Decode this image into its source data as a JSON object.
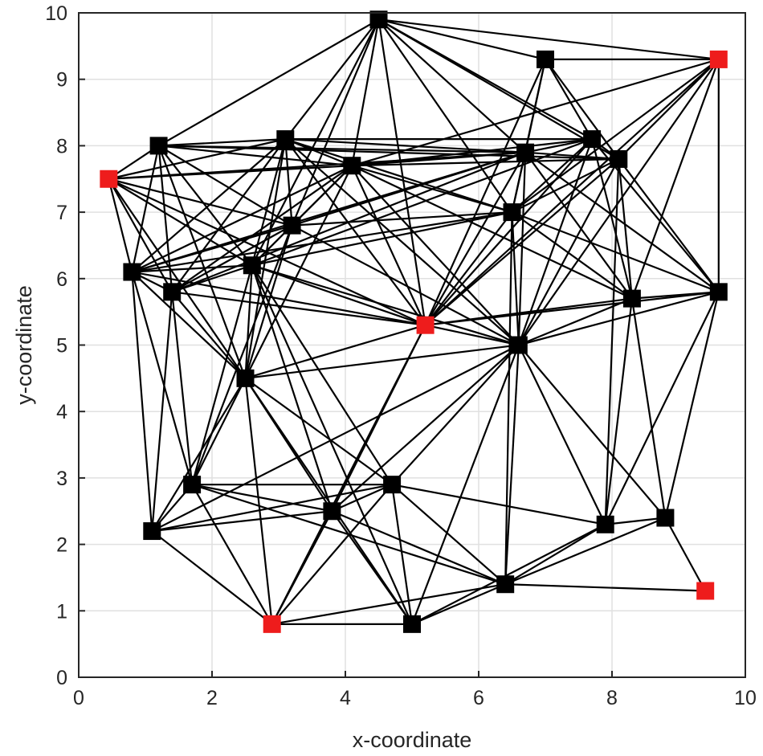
{
  "chart_data": {
    "type": "scatter",
    "title": "",
    "xlabel": "x-coordinate",
    "ylabel": "y-coordinate",
    "xlim": [
      0,
      10
    ],
    "ylim": [
      0,
      10
    ],
    "xticks": [
      "0",
      "2",
      "4",
      "6",
      "8",
      "10"
    ],
    "yticks": [
      "0",
      "1",
      "2",
      "3",
      "4",
      "5",
      "6",
      "7",
      "8",
      "9",
      "10"
    ],
    "grid": true,
    "colors": {
      "node": "#000000",
      "anchor": "#ee1c1c",
      "edge": "#000000",
      "grid": "#e0e0e0"
    },
    "nodes": [
      {
        "id": "N0",
        "x": 4.5,
        "y": 9.9,
        "anchor": false
      },
      {
        "id": "N1",
        "x": 7.0,
        "y": 9.3,
        "anchor": false
      },
      {
        "id": "N2",
        "x": 9.6,
        "y": 9.3,
        "anchor": true
      },
      {
        "id": "N3",
        "x": 1.2,
        "y": 8.0,
        "anchor": false
      },
      {
        "id": "N4",
        "x": 3.1,
        "y": 8.1,
        "anchor": false
      },
      {
        "id": "N5",
        "x": 0.45,
        "y": 7.5,
        "anchor": true
      },
      {
        "id": "N6",
        "x": 4.1,
        "y": 7.7,
        "anchor": false
      },
      {
        "id": "N7",
        "x": 6.7,
        "y": 7.9,
        "anchor": false
      },
      {
        "id": "N8",
        "x": 7.7,
        "y": 8.1,
        "anchor": false
      },
      {
        "id": "N9",
        "x": 8.1,
        "y": 7.8,
        "anchor": false
      },
      {
        "id": "N10",
        "x": 6.5,
        "y": 7.0,
        "anchor": false
      },
      {
        "id": "N11",
        "x": 3.2,
        "y": 6.8,
        "anchor": false
      },
      {
        "id": "N12",
        "x": 0.8,
        "y": 6.1,
        "anchor": false
      },
      {
        "id": "N13",
        "x": 2.6,
        "y": 6.2,
        "anchor": false
      },
      {
        "id": "N14",
        "x": 1.4,
        "y": 5.8,
        "anchor": false
      },
      {
        "id": "N15",
        "x": 8.3,
        "y": 5.7,
        "anchor": false
      },
      {
        "id": "N16",
        "x": 9.6,
        "y": 5.8,
        "anchor": false
      },
      {
        "id": "N17",
        "x": 5.2,
        "y": 5.3,
        "anchor": true
      },
      {
        "id": "N18",
        "x": 6.6,
        "y": 5.0,
        "anchor": false
      },
      {
        "id": "N19",
        "x": 2.5,
        "y": 4.5,
        "anchor": false
      },
      {
        "id": "N20",
        "x": 1.7,
        "y": 2.9,
        "anchor": false
      },
      {
        "id": "N21",
        "x": 4.7,
        "y": 2.9,
        "anchor": false
      },
      {
        "id": "N22",
        "x": 3.8,
        "y": 2.5,
        "anchor": false
      },
      {
        "id": "N23",
        "x": 1.1,
        "y": 2.2,
        "anchor": false
      },
      {
        "id": "N24",
        "x": 7.9,
        "y": 2.3,
        "anchor": false
      },
      {
        "id": "N25",
        "x": 8.8,
        "y": 2.4,
        "anchor": false
      },
      {
        "id": "N26",
        "x": 6.4,
        "y": 1.4,
        "anchor": false
      },
      {
        "id": "N27",
        "x": 9.4,
        "y": 1.3,
        "anchor": true
      },
      {
        "id": "N28",
        "x": 2.9,
        "y": 0.8,
        "anchor": true
      },
      {
        "id": "N29",
        "x": 5.0,
        "y": 0.8,
        "anchor": false
      }
    ],
    "edges": [
      [
        0,
        1
      ],
      [
        0,
        3
      ],
      [
        0,
        4
      ],
      [
        0,
        6
      ],
      [
        0,
        7
      ],
      [
        0,
        8
      ],
      [
        0,
        9
      ],
      [
        0,
        10
      ],
      [
        0,
        11
      ],
      [
        0,
        13
      ],
      [
        0,
        17
      ],
      [
        0,
        2
      ],
      [
        1,
        2
      ],
      [
        1,
        7
      ],
      [
        1,
        8
      ],
      [
        1,
        9
      ],
      [
        1,
        10
      ],
      [
        1,
        17
      ],
      [
        2,
        16
      ],
      [
        2,
        9
      ],
      [
        2,
        10
      ],
      [
        2,
        15
      ],
      [
        2,
        6
      ],
      [
        2,
        17
      ],
      [
        2,
        18
      ],
      [
        3,
        4
      ],
      [
        3,
        5
      ],
      [
        3,
        6
      ],
      [
        3,
        7
      ],
      [
        3,
        12
      ],
      [
        3,
        13
      ],
      [
        3,
        14
      ],
      [
        3,
        19
      ],
      [
        3,
        11
      ],
      [
        3,
        9
      ],
      [
        4,
        5
      ],
      [
        4,
        6
      ],
      [
        4,
        7
      ],
      [
        4,
        8
      ],
      [
        4,
        10
      ],
      [
        4,
        11
      ],
      [
        4,
        12
      ],
      [
        4,
        13
      ],
      [
        4,
        14
      ],
      [
        4,
        19
      ],
      [
        4,
        17
      ],
      [
        4,
        18
      ],
      [
        5,
        6
      ],
      [
        5,
        7
      ],
      [
        5,
        12
      ],
      [
        5,
        13
      ],
      [
        5,
        14
      ],
      [
        5,
        11
      ],
      [
        5,
        17
      ],
      [
        5,
        19
      ],
      [
        6,
        7
      ],
      [
        6,
        8
      ],
      [
        6,
        9
      ],
      [
        6,
        10
      ],
      [
        6,
        11
      ],
      [
        6,
        12
      ],
      [
        6,
        13
      ],
      [
        6,
        14
      ],
      [
        6,
        17
      ],
      [
        6,
        18
      ],
      [
        6,
        19
      ],
      [
        6,
        15
      ],
      [
        7,
        8
      ],
      [
        7,
        9
      ],
      [
        7,
        10
      ],
      [
        7,
        12
      ],
      [
        7,
        14
      ],
      [
        7,
        15
      ],
      [
        7,
        16
      ],
      [
        7,
        17
      ],
      [
        7,
        18
      ],
      [
        7,
        11
      ],
      [
        8,
        9
      ],
      [
        8,
        10
      ],
      [
        8,
        13
      ],
      [
        8,
        17
      ],
      [
        8,
        18
      ],
      [
        8,
        15
      ],
      [
        8,
        16
      ],
      [
        9,
        10
      ],
      [
        9,
        16
      ],
      [
        9,
        17
      ],
      [
        9,
        18
      ],
      [
        9,
        24
      ],
      [
        9,
        15
      ],
      [
        10,
        11
      ],
      [
        10,
        12
      ],
      [
        10,
        13
      ],
      [
        10,
        15
      ],
      [
        10,
        16
      ],
      [
        10,
        17
      ],
      [
        10,
        18
      ],
      [
        10,
        26
      ],
      [
        11,
        12
      ],
      [
        11,
        13
      ],
      [
        11,
        14
      ],
      [
        11,
        18
      ],
      [
        11,
        19
      ],
      [
        11,
        20
      ],
      [
        12,
        13
      ],
      [
        12,
        14
      ],
      [
        12,
        17
      ],
      [
        12,
        19
      ],
      [
        12,
        20
      ],
      [
        12,
        23
      ],
      [
        13,
        14
      ],
      [
        13,
        17
      ],
      [
        13,
        18
      ],
      [
        13,
        19
      ],
      [
        13,
        20
      ],
      [
        13,
        21
      ],
      [
        13,
        22
      ],
      [
        13,
        29
      ],
      [
        14,
        17
      ],
      [
        14,
        19
      ],
      [
        14,
        20
      ],
      [
        14,
        23
      ],
      [
        15,
        16
      ],
      [
        15,
        17
      ],
      [
        15,
        18
      ],
      [
        15,
        24
      ],
      [
        15,
        25
      ],
      [
        16,
        17
      ],
      [
        16,
        18
      ],
      [
        16,
        24
      ],
      [
        16,
        25
      ],
      [
        17,
        18
      ],
      [
        17,
        19
      ],
      [
        17,
        22
      ],
      [
        17,
        28
      ],
      [
        18,
        19
      ],
      [
        18,
        21
      ],
      [
        18,
        22
      ],
      [
        18,
        23
      ],
      [
        18,
        24
      ],
      [
        18,
        25
      ],
      [
        18,
        26
      ],
      [
        18,
        29
      ],
      [
        19,
        20
      ],
      [
        19,
        21
      ],
      [
        19,
        22
      ],
      [
        19,
        23
      ],
      [
        19,
        28
      ],
      [
        19,
        29
      ],
      [
        20,
        21
      ],
      [
        20,
        22
      ],
      [
        20,
        23
      ],
      [
        20,
        26
      ],
      [
        20,
        28
      ],
      [
        21,
        22
      ],
      [
        21,
        23
      ],
      [
        21,
        24
      ],
      [
        21,
        26
      ],
      [
        21,
        28
      ],
      [
        21,
        29
      ],
      [
        22,
        23
      ],
      [
        22,
        28
      ],
      [
        22,
        29
      ],
      [
        22,
        26
      ],
      [
        23,
        28
      ],
      [
        24,
        25
      ],
      [
        24,
        26
      ],
      [
        24,
        29
      ],
      [
        25,
        26
      ],
      [
        25,
        27
      ],
      [
        26,
        27
      ],
      [
        26,
        28
      ],
      [
        26,
        29
      ],
      [
        28,
        29
      ]
    ]
  }
}
